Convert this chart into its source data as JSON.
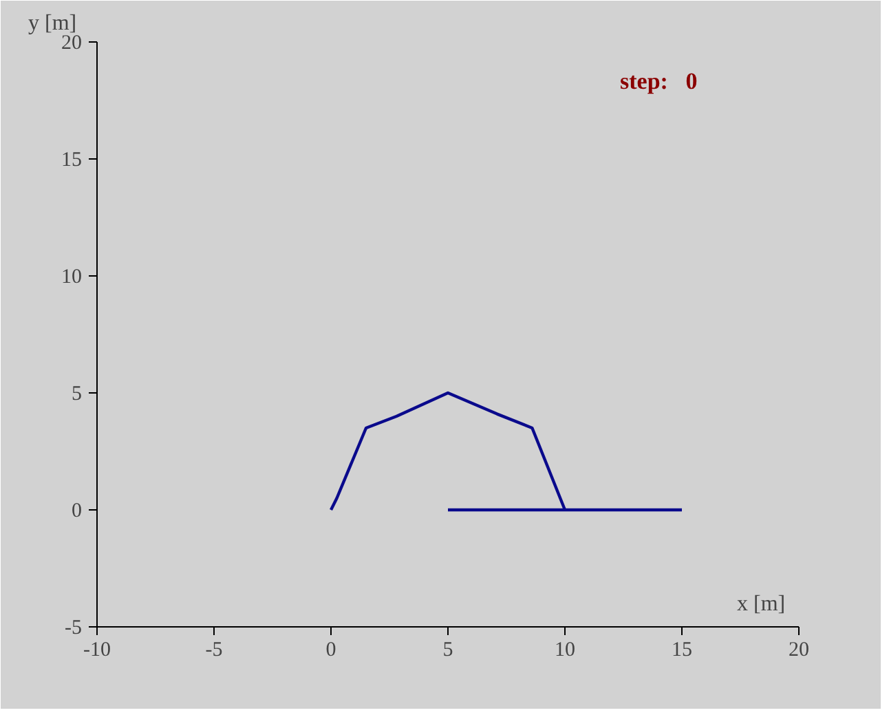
{
  "chart_data": {
    "type": "line",
    "xlabel": "x [m]",
    "ylabel": "y [m]",
    "annotations": [
      "step:   0"
    ],
    "series": [
      {
        "color": "#0a0a8c",
        "x": [
          0,
          0.25,
          1.5,
          2.8,
          5,
          7.1,
          8.6,
          10
        ],
        "values": [
          0,
          0.5,
          3.5,
          4.0,
          5,
          4.1,
          3.5,
          0
        ]
      },
      {
        "color": "#0a0a8c",
        "x": [
          5,
          15
        ],
        "values": [
          0,
          0
        ]
      }
    ],
    "xlim": [
      -10,
      20
    ],
    "ylim": [
      -5,
      20
    ],
    "xticks": [
      -10,
      -5,
      0,
      5,
      10,
      15,
      20
    ],
    "yticks": [
      -5,
      0,
      5,
      10,
      15,
      20
    ],
    "grid": false,
    "marker": "none",
    "line_style": "solid"
  }
}
